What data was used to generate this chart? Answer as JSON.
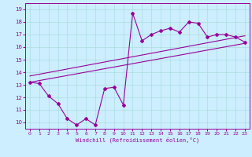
{
  "title": "",
  "xlabel": "Windchill (Refroidissement éolien,°C)",
  "bg_color": "#cceeff",
  "line_color": "#990099",
  "grid_color": "#aadddd",
  "xmin": -0.5,
  "xmax": 23.5,
  "ymin": 9.5,
  "ymax": 19.5,
  "yticks": [
    10,
    11,
    12,
    13,
    14,
    15,
    16,
    17,
    18,
    19
  ],
  "xticks": [
    0,
    1,
    2,
    3,
    4,
    5,
    6,
    7,
    8,
    9,
    10,
    11,
    12,
    13,
    14,
    15,
    16,
    17,
    18,
    19,
    20,
    21,
    22,
    23
  ],
  "data_x": [
    0,
    1,
    2,
    3,
    4,
    5,
    6,
    7,
    8,
    9,
    10,
    11,
    12,
    13,
    14,
    15,
    16,
    17,
    18,
    19,
    20,
    21,
    22,
    23
  ],
  "data_y": [
    13.2,
    13.1,
    12.1,
    11.5,
    10.3,
    9.8,
    10.3,
    9.8,
    12.7,
    12.8,
    11.4,
    18.7,
    16.5,
    17.0,
    17.3,
    17.5,
    17.2,
    18.0,
    17.9,
    16.8,
    17.0,
    17.0,
    16.8,
    16.4
  ],
  "line1_x": [
    0,
    23
  ],
  "line1_y": [
    13.2,
    16.3
  ],
  "line2_x": [
    0,
    23
  ],
  "line2_y": [
    13.7,
    16.9
  ]
}
